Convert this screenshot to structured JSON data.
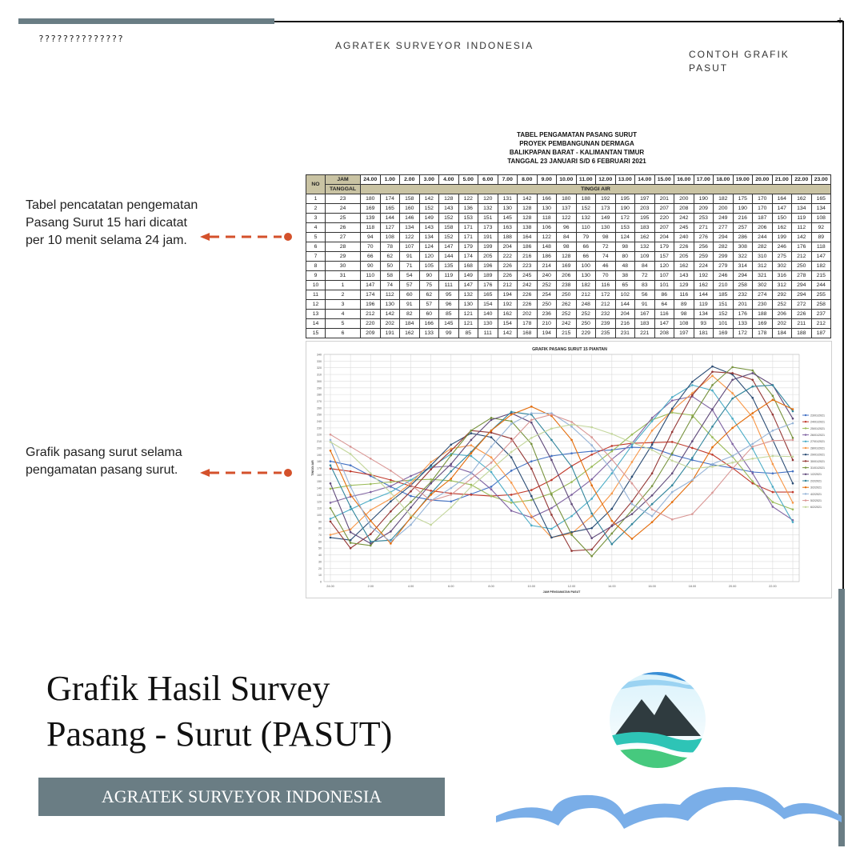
{
  "header": {
    "corner_text": "??????????????",
    "company": "AGRATEK SURVEYOR INDONESIA",
    "right_line1": "CONTOH GRAFIK",
    "right_line2": "PASUT"
  },
  "table_title": {
    "line1": "TABEL PENGAMATAN PASANG SURUT",
    "line2": "PROYEK PEMBANGUNAN DERMAGA",
    "line3": "BALIKPAPAN BARAT - KALIMANTAN TIMUR",
    "line4": "TANGGAL 23 JANUARI S/D 6 FEBRUARI 2021"
  },
  "table": {
    "no_label": "NO",
    "jam_label": "JAM",
    "tanggal_label": "TANGGAL",
    "tinggi_label": "TINGGI AIR",
    "hours": [
      "24.00",
      "1.00",
      "2.00",
      "3.00",
      "4.00",
      "5.00",
      "6.00",
      "7.00",
      "8.00",
      "9.00",
      "10.00",
      "11.00",
      "12.00",
      "13.00",
      "14.00",
      "15.00",
      "16.00",
      "17.00",
      "18.00",
      "19.00",
      "20.00",
      "21.00",
      "22.00",
      "23.00"
    ],
    "rows": [
      {
        "no": "1",
        "tanggal": "23",
        "values": [
          180,
          174,
          158,
          142,
          128,
          122,
          120,
          131,
          142,
          166,
          180,
          188,
          192,
          195,
          197,
          201,
          200,
          190,
          182,
          175,
          170,
          164,
          162,
          165
        ]
      },
      {
        "no": "2",
        "tanggal": "24",
        "values": [
          169,
          165,
          160,
          152,
          143,
          136,
          132,
          130,
          128,
          130,
          137,
          152,
          173,
          190,
          203,
          207,
          208,
          209,
          200,
          190,
          170,
          147,
          134,
          134
        ]
      },
      {
        "no": "3",
        "tanggal": "25",
        "values": [
          139,
          144,
          146,
          149,
          152,
          153,
          151,
          145,
          128,
          118,
          122,
          132,
          149,
          172,
          195,
          220,
          242,
          253,
          249,
          216,
          187,
          150,
          119,
          108
        ]
      },
      {
        "no": "4",
        "tanggal": "26",
        "values": [
          118,
          127,
          134,
          143,
          158,
          171,
          173,
          163,
          138,
          106,
          96,
          110,
          130,
          153,
          183,
          207,
          245,
          271,
          277,
          257,
          206,
          162,
          112,
          92
        ]
      },
      {
        "no": "5",
        "tanggal": "27",
        "values": [
          94,
          108,
          122,
          134,
          152,
          171,
          191,
          188,
          164,
          122,
          84,
          79,
          98,
          124,
          162,
          204,
          240,
          276,
          294,
          286,
          244,
          199,
          142,
          89
        ]
      },
      {
        "no": "6",
        "tanggal": "28",
        "values": [
          70,
          78,
          107,
          124,
          147,
          179,
          199,
          204,
          186,
          148,
          98,
          66,
          72,
          98,
          132,
          179,
          226,
          256,
          282,
          308,
          282,
          246,
          176,
          118
        ]
      },
      {
        "no": "7",
        "tanggal": "29",
        "values": [
          66,
          62,
          91,
          120,
          144,
          174,
          205,
          222,
          216,
          186,
          128,
          66,
          74,
          80,
          109,
          157,
          205,
          259,
          299,
          322,
          310,
          275,
          212,
          147
        ]
      },
      {
        "no": "8",
        "tanggal": "30",
        "values": [
          90,
          50,
          71,
          105,
          135,
          168,
          196,
          226,
          223,
          214,
          169,
          100,
          46,
          48,
          84,
          120,
          162,
          224,
          279,
          314,
          312,
          302,
          250,
          182
        ]
      },
      {
        "no": "9",
        "tanggal": "31",
        "values": [
          110,
          58,
          54,
          90,
          119,
          149,
          189,
          226,
          245,
          240,
          206,
          130,
          70,
          38,
          72,
          107,
          143,
          192,
          246,
          294,
          321,
          316,
          278,
          215
        ]
      },
      {
        "no": "10",
        "tanggal": "1",
        "values": [
          147,
          74,
          57,
          75,
          111,
          147,
          176,
          212,
          242,
          252,
          238,
          182,
          116,
          65,
          83,
          101,
          129,
          162,
          210,
          258,
          302,
          312,
          294,
          244
        ]
      },
      {
        "no": "11",
        "tanggal": "2",
        "values": [
          174,
          112,
          60,
          62,
          95,
          132,
          165,
          194,
          226,
          254,
          250,
          212,
          172,
          102,
          56,
          86,
          116,
          144,
          185,
          232,
          274,
          292,
          294,
          255
        ]
      },
      {
        "no": "12",
        "tanggal": "3",
        "values": [
          196,
          130,
          91,
          57,
          96,
          130,
          154,
          192,
          226,
          250,
          262,
          248,
          212,
          144,
          91,
          64,
          89,
          119,
          151,
          201,
          230,
          252,
          272,
          258
        ]
      },
      {
        "no": "13",
        "tanggal": "4",
        "values": [
          212,
          142,
          82,
          60,
          85,
          121,
          140,
          162,
          202,
          236,
          252,
          252,
          232,
          204,
          167,
          116,
          98,
          134,
          152,
          176,
          188,
          206,
          226,
          237
        ]
      },
      {
        "no": "14",
        "tanggal": "5",
        "values": [
          220,
          202,
          184,
          166,
          145,
          121,
          130,
          154,
          178,
          210,
          242,
          250,
          239,
          216,
          183,
          147,
          108,
          93,
          101,
          133,
          169,
          202,
          211,
          212
        ]
      },
      {
        "no": "15",
        "tanggal": "6",
        "values": [
          209,
          191,
          162,
          133,
          99,
          85,
          111,
          142,
          168,
          194,
          215,
          229,
          235,
          231,
          221,
          208,
          197,
          181,
          169,
          172,
          178,
          184,
          188,
          187
        ]
      }
    ]
  },
  "annotations": {
    "table_note": "Tabel pencatatan pengematan Pasang Surut 15 hari dicatat per 10 menit selama 24 jam.",
    "chart_note": "Grafik pasang surut selama pengamatan pasang surut."
  },
  "chart_data": {
    "type": "line",
    "title": "GRAFIK PASANG SURUT 15 PIANTAN",
    "xlabel": "JAM PENGAMATAN PASUT",
    "ylabel": "TINGGI AIR",
    "x": [
      "24.00",
      "1.00",
      "2.00",
      "3.00",
      "4.00",
      "5.00",
      "6.00",
      "7.00",
      "8.00",
      "9.00",
      "10.00",
      "11.00",
      "12.00",
      "13.00",
      "14.00",
      "15.00",
      "16.00",
      "17.00",
      "18.00",
      "19.00",
      "20.00",
      "21.00",
      "22.00",
      "23.00"
    ],
    "ylim": [
      0,
      340
    ],
    "y_ticks": [
      0,
      10,
      20,
      30,
      40,
      50,
      60,
      70,
      80,
      90,
      100,
      110,
      120,
      130,
      140,
      150,
      160,
      170,
      180,
      190,
      200,
      210,
      220,
      230,
      240,
      250,
      260,
      270,
      280,
      290,
      300,
      310,
      320,
      330,
      340
    ],
    "grid": true,
    "legend_position": "right",
    "legend": [
      "23/01/2021",
      "24/01/2021",
      "25/01/2021",
      "26/01/2021",
      "27/01/2021",
      "28/01/2021",
      "29/01/2021",
      "30/01/2021",
      "31/01/2021",
      "1/2/2021",
      "2/2/2021",
      "3/2/2021",
      "4/2/2021",
      "5/2/2021",
      "6/2/2021"
    ],
    "colors": [
      "#4472c4",
      "#c0392b",
      "#9bbb59",
      "#8064a2",
      "#4bacc6",
      "#f79646",
      "#2c4d75",
      "#943634",
      "#76923c",
      "#5f497a",
      "#31859c",
      "#e46c0a",
      "#95b3d7",
      "#d99694",
      "#c3d69b"
    ]
  },
  "title": {
    "line1": "Grafik Hasil Survey",
    "line2": "Pasang - Surut (PASUT)"
  },
  "banner": {
    "text": "AGRATEK SURVEYOR INDONESIA"
  },
  "colors": {
    "accent_gray": "#6a7d84",
    "arrow_red": "#d4512b",
    "table_header": "#c9c3a3",
    "logo_blue": "#3a8fd6",
    "logo_teal": "#2ec4b6",
    "wave_blue": "#7aaee8"
  }
}
